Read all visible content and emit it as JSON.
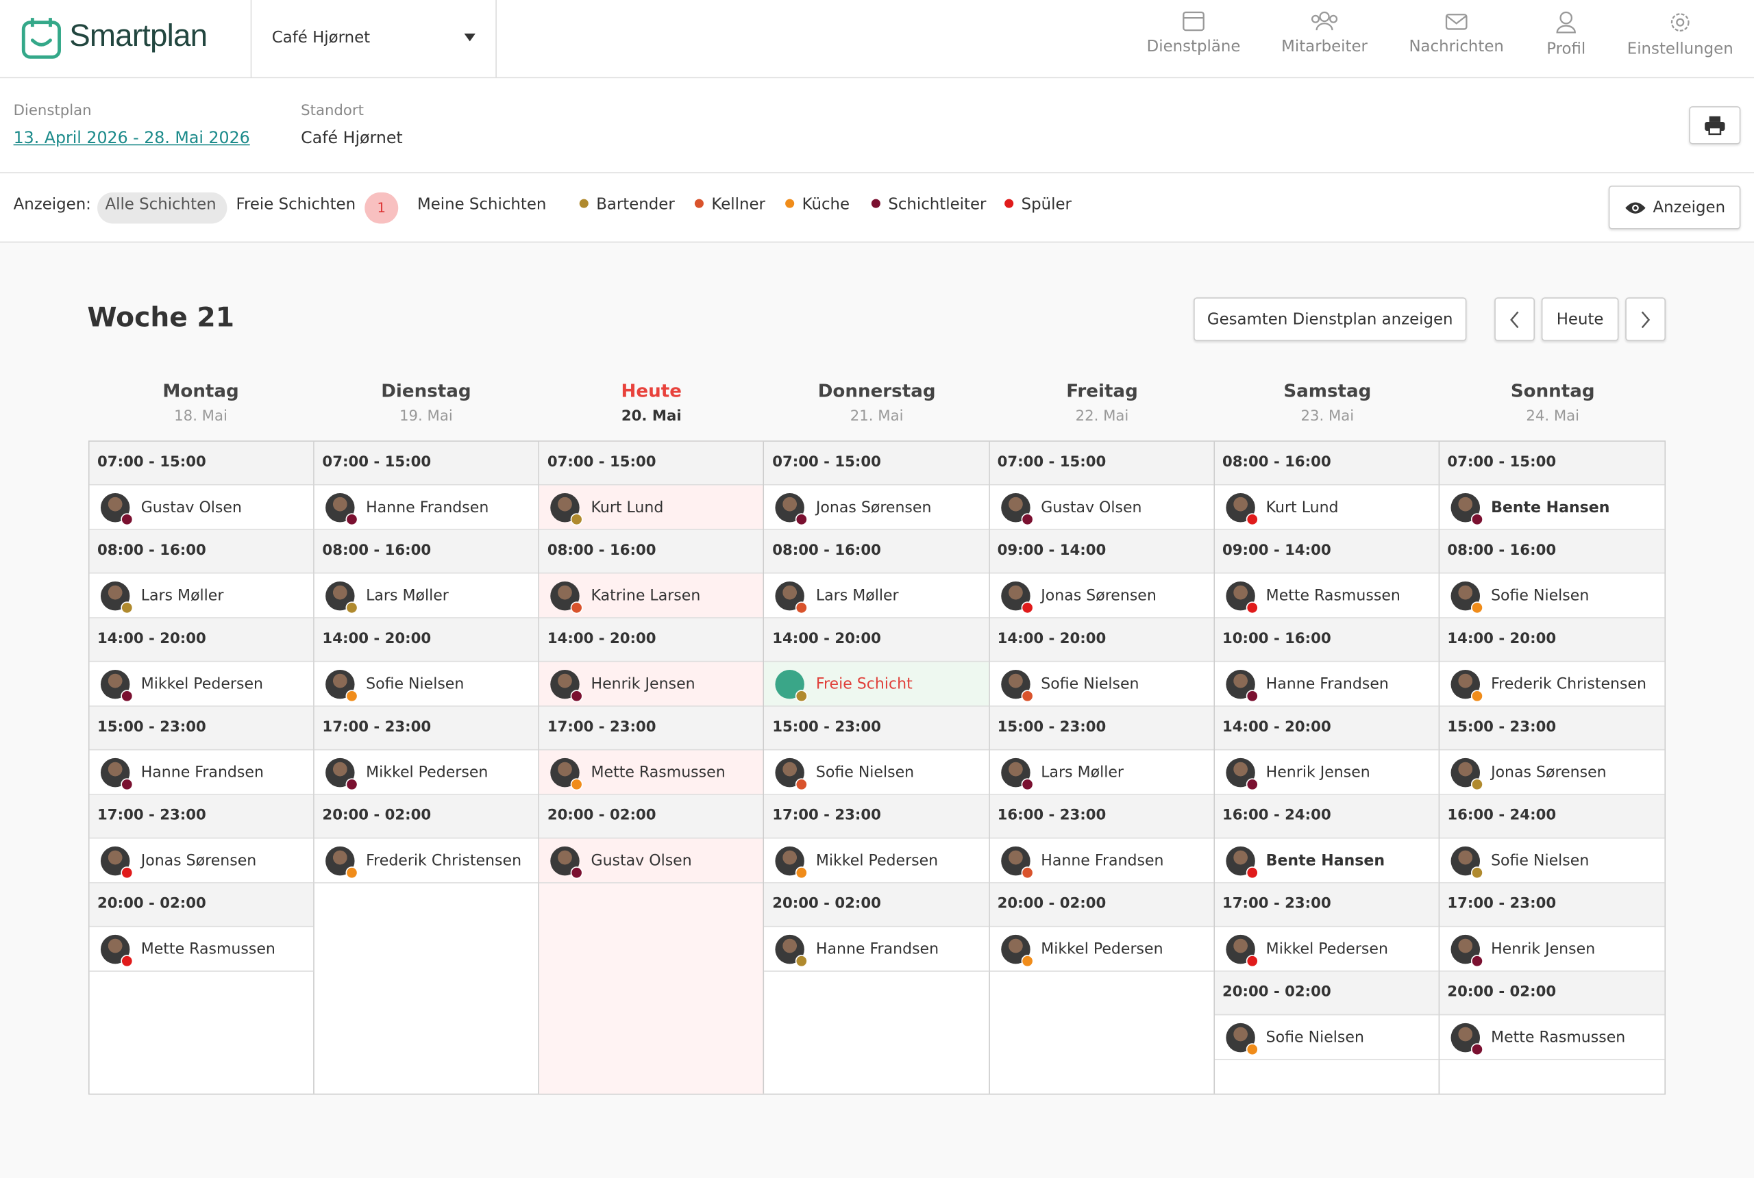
{
  "header": {
    "brand": "Smartplan",
    "location_select": "Café Hjørnet",
    "nav": [
      "Dienstpläne",
      "Mitarbeiter",
      "Nachrichten",
      "Profil",
      "Einstellungen"
    ]
  },
  "info": {
    "plan_label": "Dienstplan",
    "plan_range": "13. April 2026 - 28. Mai 2026",
    "location_label": "Standort",
    "location": "Café Hjørnet"
  },
  "filters": {
    "label": "Anzeigen:",
    "tabs": [
      "Alle Schichten",
      "Freie Schichten",
      "Meine Schichten"
    ],
    "free_count": 1,
    "roles": [
      {
        "name": "Bartender",
        "color": "#b08a2e"
      },
      {
        "name": "Kellner",
        "color": "#d9532c"
      },
      {
        "name": "Küche",
        "color": "#f08c1a"
      },
      {
        "name": "Schichtleiter",
        "color": "#7a1030"
      },
      {
        "name": "Spüler",
        "color": "#e01b1b"
      }
    ],
    "show_button": "Anzeigen"
  },
  "week": {
    "title": "Woche 21",
    "full_plan_button": "Gesamten Dienstplan anzeigen",
    "today_button": "Heute",
    "days": [
      {
        "name": "Montag",
        "date": "18. Mai",
        "today": false,
        "shifts": [
          {
            "time": "07:00 - 15:00",
            "name": "Gustav Olsen",
            "dot": "#7a1030"
          },
          {
            "time": "08:00 - 16:00",
            "name": "Lars Møller",
            "dot": "#b08a2e"
          },
          {
            "time": "14:00 - 20:00",
            "name": "Mikkel Pedersen",
            "dot": "#7a1030"
          },
          {
            "time": "15:00 - 23:00",
            "name": "Hanne Frandsen",
            "dot": "#7a1030"
          },
          {
            "time": "17:00 - 23:00",
            "name": "Jonas Sørensen",
            "dot": "#e01b1b"
          },
          {
            "time": "20:00 - 02:00",
            "name": "Mette Rasmussen",
            "dot": "#e01b1b"
          }
        ]
      },
      {
        "name": "Dienstag",
        "date": "19. Mai",
        "today": false,
        "shifts": [
          {
            "time": "07:00 - 15:00",
            "name": "Hanne Frandsen",
            "dot": "#7a1030"
          },
          {
            "time": "08:00 - 16:00",
            "name": "Lars Møller",
            "dot": "#b08a2e"
          },
          {
            "time": "14:00 - 20:00",
            "name": "Sofie Nielsen",
            "dot": "#f08c1a"
          },
          {
            "time": "17:00 - 23:00",
            "name": "Mikkel Pedersen",
            "dot": "#7a1030"
          },
          {
            "time": "20:00 - 02:00",
            "name": "Frederik Christensen",
            "dot": "#f08c1a"
          }
        ]
      },
      {
        "name": "Heute",
        "date": "20. Mai",
        "today": true,
        "shifts": [
          {
            "time": "07:00 - 15:00",
            "name": "Kurt Lund",
            "dot": "#b08a2e"
          },
          {
            "time": "08:00 - 16:00",
            "name": "Katrine Larsen",
            "dot": "#d9532c"
          },
          {
            "time": "14:00 - 20:00",
            "name": "Henrik Jensen",
            "dot": "#7a1030"
          },
          {
            "time": "17:00 - 23:00",
            "name": "Mette Rasmussen",
            "dot": "#f08c1a"
          },
          {
            "time": "20:00 - 02:00",
            "name": "Gustav Olsen",
            "dot": "#7a1030"
          }
        ]
      },
      {
        "name": "Donnerstag",
        "date": "21. Mai",
        "today": false,
        "shifts": [
          {
            "time": "07:00 - 15:00",
            "name": "Jonas Sørensen",
            "dot": "#7a1030"
          },
          {
            "time": "08:00 - 16:00",
            "name": "Lars Møller",
            "dot": "#d9532c"
          },
          {
            "time": "14:00 - 20:00",
            "name": "Freie Schicht",
            "dot": "#b08a2e",
            "free": true
          },
          {
            "time": "15:00 - 23:00",
            "name": "Sofie Nielsen",
            "dot": "#d9532c"
          },
          {
            "time": "17:00 - 23:00",
            "name": "Mikkel Pedersen",
            "dot": "#f08c1a"
          },
          {
            "time": "20:00 - 02:00",
            "name": "Hanne Frandsen",
            "dot": "#b08a2e"
          }
        ]
      },
      {
        "name": "Freitag",
        "date": "22. Mai",
        "today": false,
        "shifts": [
          {
            "time": "07:00 - 15:00",
            "name": "Gustav Olsen",
            "dot": "#7a1030"
          },
          {
            "time": "09:00 - 14:00",
            "name": "Jonas Sørensen",
            "dot": "#e01b1b"
          },
          {
            "time": "14:00 - 20:00",
            "name": "Sofie Nielsen",
            "dot": "#d9532c"
          },
          {
            "time": "15:00 - 23:00",
            "name": "Lars Møller",
            "dot": "#7a1030"
          },
          {
            "time": "16:00 - 23:00",
            "name": "Hanne Frandsen",
            "dot": "#d9532c"
          },
          {
            "time": "20:00 - 02:00",
            "name": "Mikkel Pedersen",
            "dot": "#f08c1a"
          }
        ]
      },
      {
        "name": "Samstag",
        "date": "23. Mai",
        "today": false,
        "shifts": [
          {
            "time": "08:00 - 16:00",
            "name": "Kurt Lund",
            "dot": "#e01b1b"
          },
          {
            "time": "09:00 - 14:00",
            "name": "Mette Rasmussen",
            "dot": "#e01b1b"
          },
          {
            "time": "10:00 - 16:00",
            "name": "Hanne Frandsen",
            "dot": "#7a1030"
          },
          {
            "time": "14:00 - 20:00",
            "name": "Henrik Jensen",
            "dot": "#7a1030"
          },
          {
            "time": "16:00 - 24:00",
            "name": "Bente Hansen",
            "dot": "#e01b1b",
            "bold": true
          },
          {
            "time": "17:00 - 23:00",
            "name": "Mikkel Pedersen",
            "dot": "#e01b1b"
          },
          {
            "time": "20:00 - 02:00",
            "name": "Sofie Nielsen",
            "dot": "#f08c1a"
          }
        ]
      },
      {
        "name": "Sonntag",
        "date": "24. Mai",
        "today": false,
        "shifts": [
          {
            "time": "07:00 - 15:00",
            "name": "Bente Hansen",
            "dot": "#7a1030",
            "bold": true
          },
          {
            "time": "08:00 - 16:00",
            "name": "Sofie Nielsen",
            "dot": "#f08c1a"
          },
          {
            "time": "14:00 - 20:00",
            "name": "Frederik Christensen",
            "dot": "#f08c1a"
          },
          {
            "time": "15:00 - 23:00",
            "name": "Jonas Sørensen",
            "dot": "#b08a2e"
          },
          {
            "time": "16:00 - 24:00",
            "name": "Sofie Nielsen",
            "dot": "#b08a2e"
          },
          {
            "time": "17:00 - 23:00",
            "name": "Henrik Jensen",
            "dot": "#7a1030"
          },
          {
            "time": "20:00 - 02:00",
            "name": "Mette Rasmussen",
            "dot": "#7a1030"
          }
        ]
      }
    ]
  }
}
